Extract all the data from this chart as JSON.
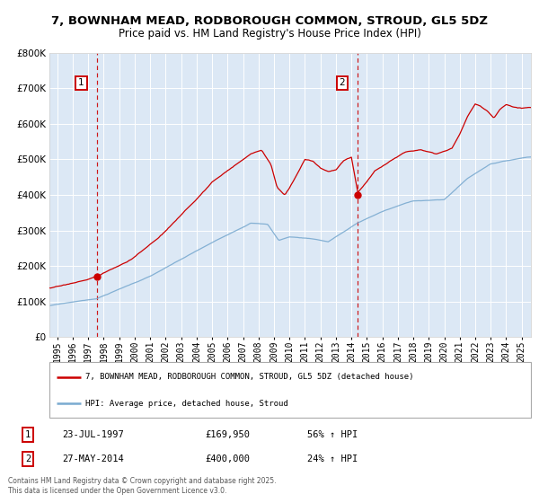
{
  "title": "7, BOWNHAM MEAD, RODBOROUGH COMMON, STROUD, GL5 5DZ",
  "subtitle": "Price paid vs. HM Land Registry's House Price Index (HPI)",
  "legend_line1": "7, BOWNHAM MEAD, RODBOROUGH COMMON, STROUD, GL5 5DZ (detached house)",
  "legend_line2": "HPI: Average price, detached house, Stroud",
  "annotation1_label": "1",
  "annotation1_date": "23-JUL-1997",
  "annotation1_price": "£169,950",
  "annotation1_hpi": "56% ↑ HPI",
  "annotation2_label": "2",
  "annotation2_date": "27-MAY-2014",
  "annotation2_price": "£400,000",
  "annotation2_hpi": "24% ↑ HPI",
  "footer_line1": "Contains HM Land Registry data © Crown copyright and database right 2025.",
  "footer_line2": "This data is licensed under the Open Government Licence v3.0.",
  "sale1_year": 1997.55,
  "sale1_value": 169950,
  "sale2_year": 2014.41,
  "sale2_value": 400000,
  "hpi_color": "#7aaad0",
  "price_color": "#cc0000",
  "plot_bg": "#dce8f5",
  "dashed_color": "#cc0000",
  "ylim_max": 800000,
  "ylim_min": 0,
  "xlim_min": 1994.5,
  "xlim_max": 2025.6,
  "grid_color": "#ffffff",
  "legend_border": "#bbbbbb",
  "ann_box_color": "#cc0000",
  "title_fontsize": 9.5,
  "subtitle_fontsize": 8.5,
  "tick_fontsize": 7.0,
  "ytick_fontsize": 7.5
}
